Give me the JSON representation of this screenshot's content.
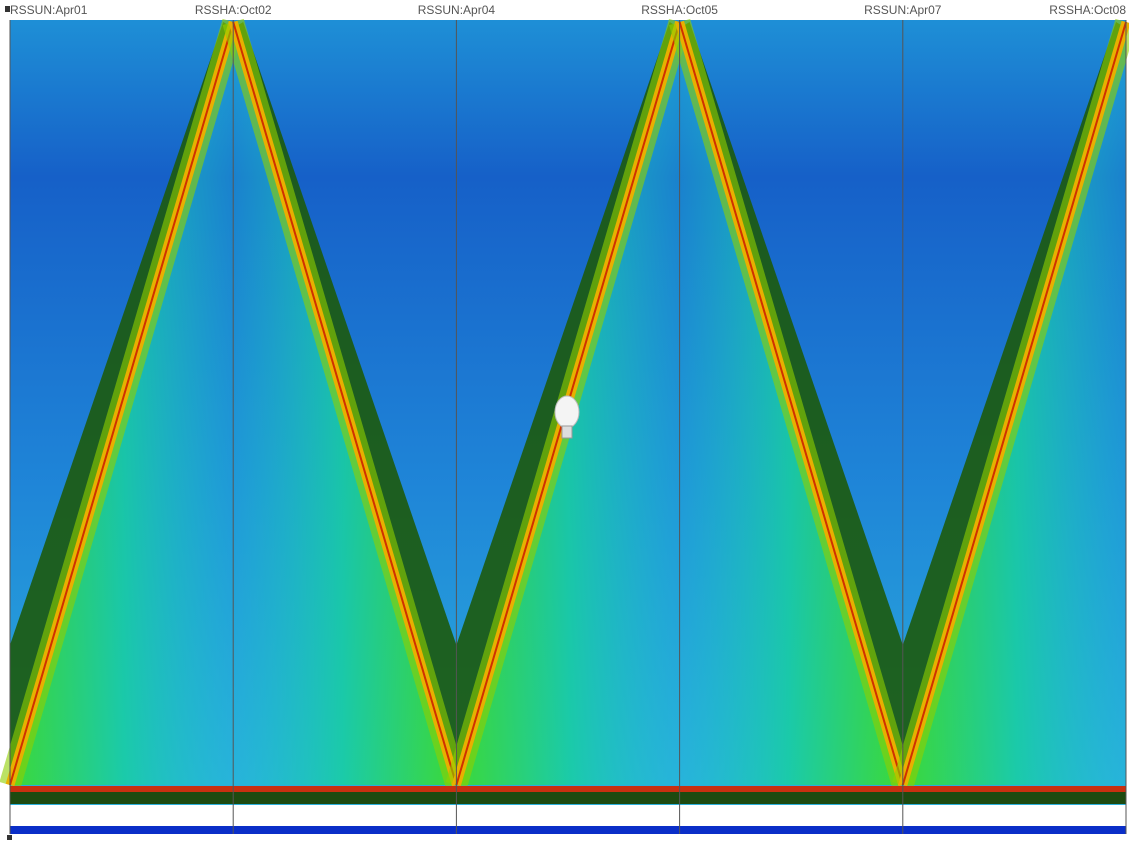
{
  "chart_data": {
    "type": "parallel",
    "dimensions": [
      "RSSUN:Apr01",
      "RSSHA:Oct02",
      "RSSUN:Apr04",
      "RSSHA:Oct05",
      "RSSUN:Apr07",
      "RSSHA:Oct08"
    ]
  }
}
